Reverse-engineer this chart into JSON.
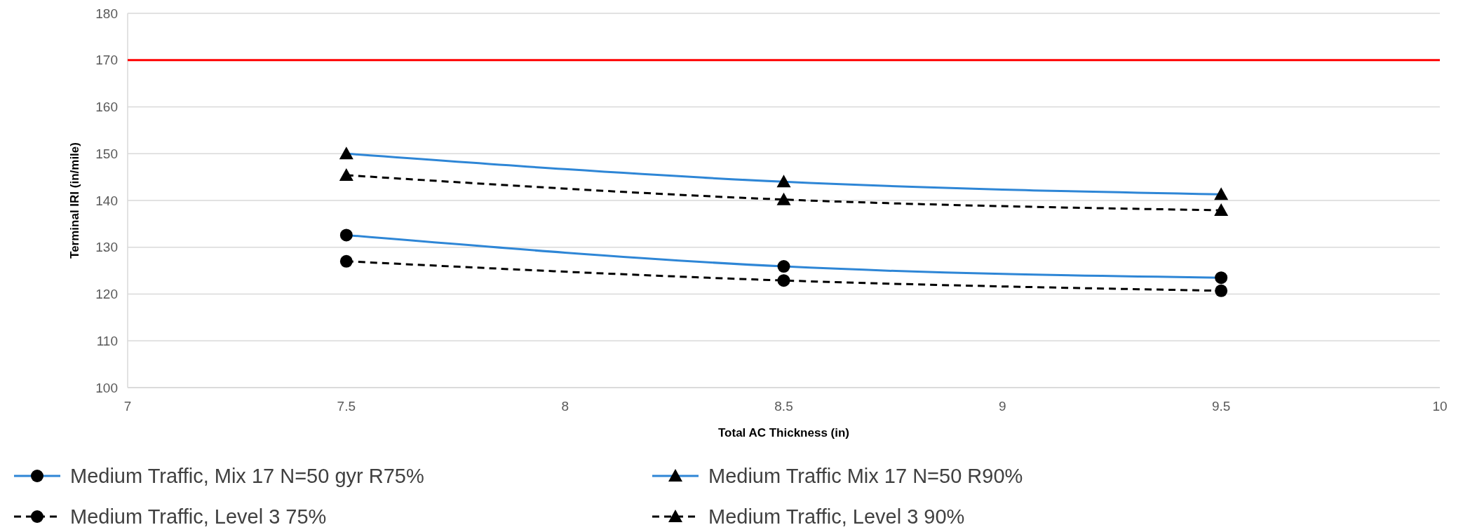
{
  "chart_data": {
    "type": "line",
    "xlabel": "Total AC Thickness (in)",
    "ylabel": "Terminal IRI (in/mile)",
    "x": [
      7.5,
      8.5,
      9.5
    ],
    "series": [
      {
        "name": "Medium Traffic, Mix 17 N=50 gyr R75%",
        "color": "#2e86d6",
        "values": [
          132.6,
          125.9,
          123.5
        ],
        "marker": "circle",
        "line_style": "solid"
      },
      {
        "name": "Medium Traffic Mix 17 N=50 R90%",
        "color": "#2e86d6",
        "values": [
          150.0,
          144.0,
          141.3
        ],
        "marker": "triangle",
        "line_style": "solid"
      },
      {
        "name": "Medium Traffic, Level 3 75%",
        "color": "#000000",
        "values": [
          127.0,
          122.9,
          120.7
        ],
        "marker": "circle",
        "line_style": "dashed"
      },
      {
        "name": "Medium Traffic, Level 3 90%",
        "color": "#000000",
        "values": [
          145.4,
          140.2,
          137.9
        ],
        "marker": "triangle",
        "line_style": "dashed"
      }
    ],
    "xlim": [
      7,
      10
    ],
    "xticks": [
      7,
      7.5,
      8,
      8.5,
      9,
      9.5,
      10
    ],
    "ylim": [
      100,
      180
    ],
    "yticks": [
      100,
      110,
      120,
      130,
      140,
      150,
      160,
      170,
      180
    ],
    "ref_lines": [
      {
        "axis": "y",
        "value": 170,
        "color": "#ff0000"
      }
    ],
    "grid": "y",
    "legend": "bottom"
  }
}
